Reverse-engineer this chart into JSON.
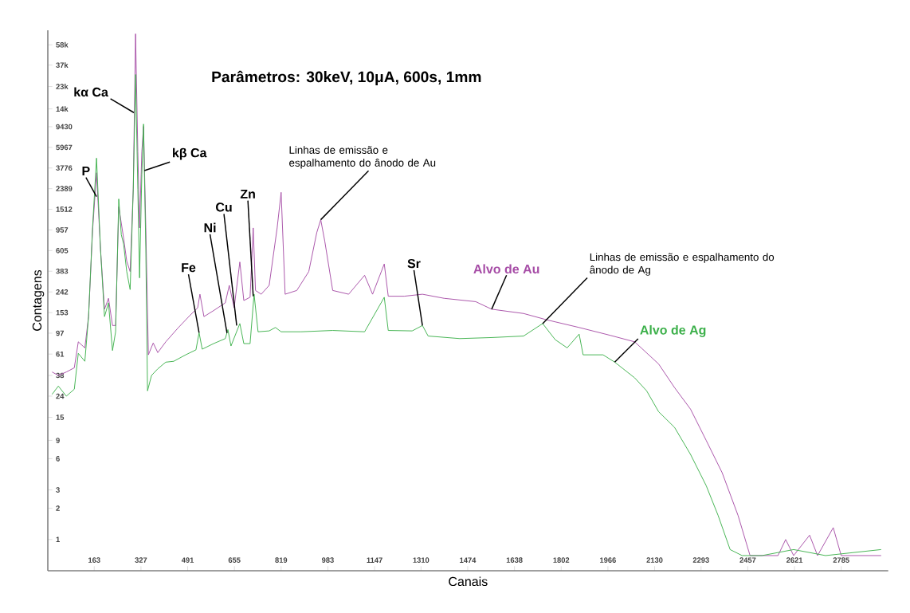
{
  "chart_data": {
    "type": "line",
    "title": "Parâmetros: 30keV, 10μA, 600s, 1mm",
    "xlabel": "Canais",
    "ylabel": "Contagens",
    "log": "y",
    "xlim": [
      0,
      2950
    ],
    "ylim": [
      0.5,
      80000
    ],
    "xticks": [
      163,
      327,
      491,
      655,
      819,
      983,
      1147,
      1310,
      1474,
      1638,
      1802,
      1966,
      2130,
      2293,
      2457,
      2621,
      2785
    ],
    "yticks": [
      {
        "value": 58000,
        "label": "58k"
      },
      {
        "value": 37000,
        "label": "37k"
      },
      {
        "value": 23000,
        "label": "23k"
      },
      {
        "value": 14000,
        "label": "14k"
      },
      9430,
      5967,
      3776,
      2389,
      1512,
      957,
      605,
      383,
      242,
      153,
      97,
      61,
      38,
      24,
      15,
      9,
      6,
      3,
      2,
      1
    ],
    "series": [
      {
        "name": "Alvo de Au",
        "color": "#a64ca6",
        "x": [
          15,
          37,
          65,
          93,
          107,
          130,
          143,
          157,
          171,
          185,
          199,
          213,
          227,
          238,
          249,
          266,
          277,
          289,
          300,
          308,
          316,
          322,
          330,
          336,
          344,
          353,
          370,
          386,
          414,
          456,
          498,
          526,
          534,
          548,
          582,
          623,
          637,
          654,
          674,
          688,
          710,
          721,
          729,
          749,
          777,
          805,
          819,
          833,
          874,
          916,
          944,
          958,
          972,
          1000,
          1056,
          1112,
          1140,
          1181,
          1195,
          1251,
          1315,
          1391,
          1502,
          1558,
          1670,
          1753,
          1865,
          1977,
          2060,
          2144,
          2200,
          2256,
          2311,
          2367,
          2423,
          2465,
          2563,
          2590,
          2618,
          2674,
          2702,
          2757,
          2785,
          2925
        ],
        "values": [
          41,
          38,
          41,
          45,
          80,
          70,
          140,
          930,
          3400,
          620,
          165,
          210,
          115,
          115,
          1600,
          800,
          480,
          380,
          2400,
          74000,
          5400,
          1000,
          5400,
          9500,
          1000,
          60,
          78,
          63,
          80,
          108,
          143,
          170,
          230,
          140,
          160,
          190,
          280,
          170,
          470,
          200,
          215,
          1000,
          250,
          230,
          280,
          1000,
          2200,
          230,
          250,
          380,
          900,
          1200,
          750,
          250,
          230,
          350,
          230,
          450,
          220,
          220,
          230,
          210,
          195,
          165,
          150,
          130,
          110,
          92,
          80,
          49,
          29,
          18,
          9,
          4.4,
          1.7,
          0.7,
          0.7,
          1,
          0.7,
          1.1,
          0.7,
          1.3,
          0.7,
          0.7
        ]
      },
      {
        "name": "Alvo de Ag",
        "color": "#3cb04a",
        "x": [
          15,
          37,
          65,
          93,
          107,
          130,
          143,
          157,
          171,
          185,
          199,
          213,
          227,
          238,
          249,
          258,
          266,
          277,
          289,
          300,
          308,
          316,
          322,
          330,
          336,
          344,
          350,
          364,
          386,
          414,
          442,
          484,
          520,
          531,
          542,
          582,
          623,
          632,
          643,
          674,
          688,
          710,
          724,
          738,
          777,
          799,
          819,
          889,
          1000,
          1112,
          1181,
          1195,
          1279,
          1315,
          1335,
          1446,
          1558,
          1670,
          1737,
          1781,
          1823,
          1865,
          1879,
          1949,
          1990,
          2060,
          2102,
          2144,
          2200,
          2256,
          2311,
          2353,
          2395,
          2437,
          2507,
          2618,
          2730,
          2925
        ],
        "values": [
          25,
          30,
          24,
          28,
          62,
          52,
          140,
          1000,
          4700,
          620,
          140,
          190,
          66,
          100,
          1900,
          860,
          700,
          380,
          255,
          2350,
          30000,
          2350,
          330,
          3300,
          10000,
          620,
          27,
          38,
          44,
          51,
          52,
          60,
          67,
          98,
          68,
          77,
          86,
          105,
          73,
          120,
          77,
          77,
          230,
          100,
          102,
          110,
          100,
          100,
          103,
          100,
          215,
          103,
          102,
          115,
          91,
          86,
          88,
          91,
          120,
          84,
          70,
          95,
          60,
          60,
          51,
          36,
          27,
          17,
          12,
          6.6,
          3.3,
          1.7,
          0.8,
          0.7,
          0.7,
          0.8,
          0.7,
          0.8
        ]
      }
    ],
    "annotations": [
      {
        "text": "P",
        "x": 171,
        "y": 2000
      },
      {
        "text": "kα Ca",
        "x": 302,
        "y": 12900
      },
      {
        "text": "kβ Ca",
        "x": 339,
        "y": 3570
      },
      {
        "text": "Fe",
        "x": 531,
        "y": 98
      },
      {
        "text": "Ni",
        "x": 629,
        "y": 97
      },
      {
        "text": "Cu",
        "x": 663,
        "y": 115
      },
      {
        "text": "Zn",
        "x": 721,
        "y": 220
      },
      {
        "text": "Linhas de emissão e espalhamento do ânodo de Au",
        "x": 958,
        "y": 1200
      },
      {
        "text": "Sr",
        "x": 1315,
        "y": 115
      },
      {
        "text": "Linhas de emissão e espalhamento do ânodo de Ag",
        "x": 1737,
        "y": 120
      }
    ]
  }
}
